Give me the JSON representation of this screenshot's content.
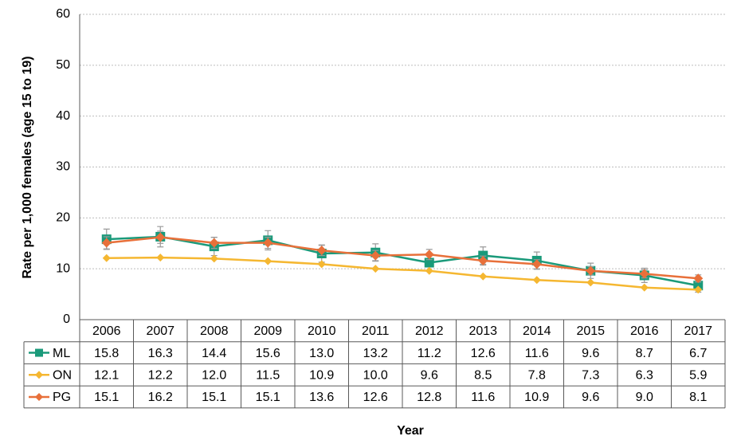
{
  "chart_data": {
    "type": "line",
    "y_label": "Rate per 1,000 females (age 15 to 19)",
    "x_label": "Year",
    "categories": [
      "2006",
      "2007",
      "2008",
      "2009",
      "2010",
      "2011",
      "2012",
      "2013",
      "2014",
      "2015",
      "2016",
      "2017"
    ],
    "ylim": [
      0,
      60
    ],
    "yticks": [
      0,
      10,
      20,
      30,
      40,
      50,
      60
    ],
    "grid": true,
    "series": [
      {
        "name": "ML",
        "color": "#1a9a7a",
        "marker": "square",
        "values": [
          15.8,
          16.3,
          14.4,
          15.6,
          13.0,
          13.2,
          11.2,
          12.6,
          11.6,
          9.6,
          8.7,
          6.7
        ],
        "value_labels": [
          "15.8",
          "16.3",
          "14.4",
          "15.6",
          "13.0",
          "13.2",
          "11.2",
          "12.6",
          "11.6",
          "9.6",
          "8.7",
          "6.7"
        ],
        "errors": [
          2.0,
          2.0,
          1.8,
          1.9,
          1.7,
          1.7,
          1.6,
          1.7,
          1.7,
          1.5,
          1.4,
          1.3
        ]
      },
      {
        "name": "ON",
        "color": "#f5b731",
        "marker": "diamond",
        "values": [
          12.1,
          12.2,
          12.0,
          11.5,
          10.9,
          10.0,
          9.6,
          8.5,
          7.8,
          7.3,
          6.3,
          5.9
        ],
        "value_labels": [
          "12.1",
          "12.2",
          "12.0",
          "11.5",
          "10.9",
          "10.0",
          "9.6",
          "8.5",
          "7.8",
          "7.3",
          "6.3",
          "5.9"
        ]
      },
      {
        "name": "PG",
        "color": "#e8703a",
        "marker": "diamond",
        "values": [
          15.1,
          16.2,
          15.1,
          15.1,
          13.6,
          12.6,
          12.8,
          11.6,
          10.9,
          9.6,
          9.0,
          8.1
        ],
        "value_labels": [
          "15.1",
          "16.2",
          "15.1",
          "15.1",
          "13.6",
          "12.6",
          "12.8",
          "11.6",
          "10.9",
          "9.6",
          "9.0",
          "8.1"
        ],
        "errors": [
          1.2,
          1.2,
          1.1,
          1.1,
          1.0,
          1.0,
          1.0,
          0.9,
          0.9,
          0.8,
          0.8,
          0.7
        ]
      }
    ]
  }
}
